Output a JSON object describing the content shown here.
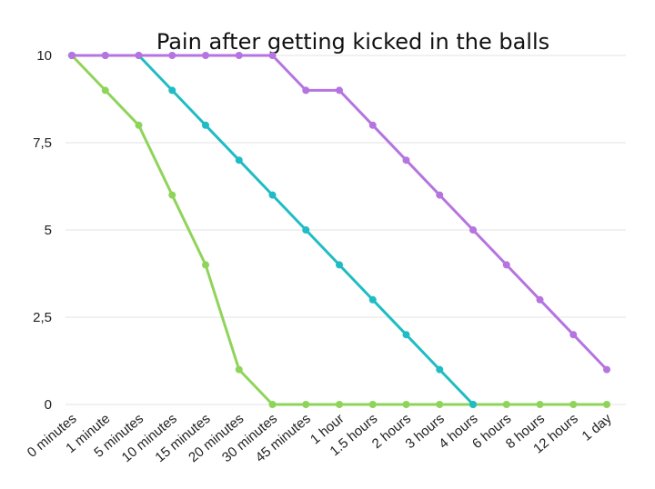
{
  "chart_data": {
    "type": "line",
    "title": "Pain after getting kicked in the balls",
    "xlabel": "",
    "ylabel": "",
    "categories": [
      "0 minutes",
      "1 minute",
      "5 minutes",
      "10 minutes",
      "15 minutes",
      "20 minutes",
      "30 minutes",
      "45 minutes",
      "1 hour",
      "1.5 hours",
      "2 hours",
      "3 hours",
      "4 hours",
      "6 hours",
      "8 hours",
      "12 hours",
      "1 day"
    ],
    "ylim": [
      0,
      10
    ],
    "yticks": [
      0,
      2.5,
      5,
      7.5,
      10
    ],
    "ytick_labels": [
      "0",
      "2,5",
      "5",
      "7,5",
      "10"
    ],
    "grid": true,
    "legend": "none",
    "series": [
      {
        "color": "#8fd45a",
        "values": [
          10,
          9,
          8,
          6,
          4,
          1,
          0,
          0,
          0,
          0,
          0,
          0,
          0,
          0,
          0,
          0,
          0
        ]
      },
      {
        "color": "#1fbcc4",
        "values": [
          10,
          10,
          10,
          9,
          8,
          7,
          6,
          5,
          4,
          3,
          2,
          1,
          0,
          null,
          null,
          null,
          null
        ]
      },
      {
        "color": "#b574e0",
        "values": [
          10,
          10,
          10,
          10,
          10,
          10,
          10,
          9,
          9,
          8,
          7,
          6,
          5,
          4,
          3,
          2,
          1
        ]
      }
    ]
  }
}
